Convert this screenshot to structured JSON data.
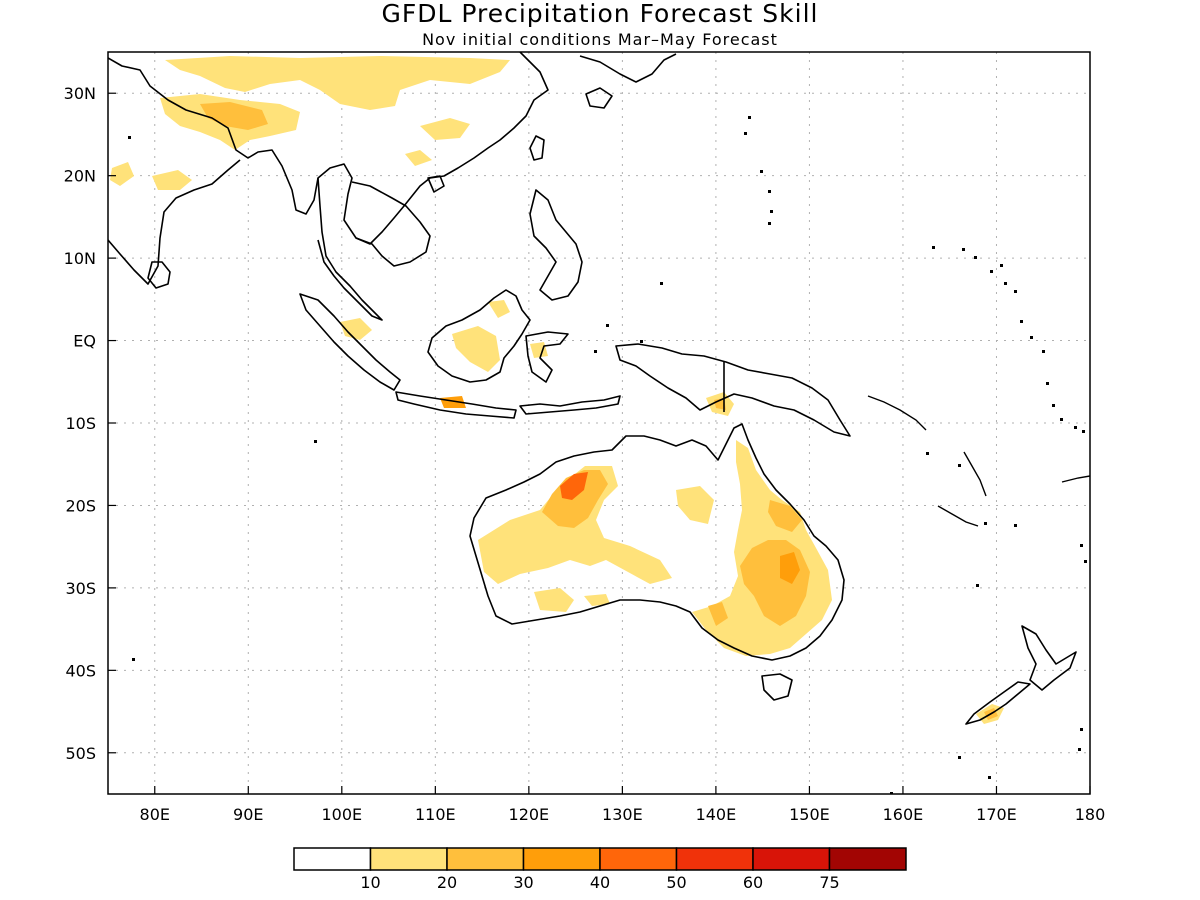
{
  "map": {
    "title": "GFDL Precipitation Forecast Skill",
    "subtitle": "Nov initial conditions  Mar–May Forecast",
    "lon_ticks": [
      "80E",
      "90E",
      "100E",
      "110E",
      "120E",
      "130E",
      "140E",
      "150E",
      "160E",
      "170E",
      "180"
    ],
    "lat_ticks": [
      "30N",
      "20N",
      "10N",
      "EQ",
      "10S",
      "20S",
      "30S",
      "40S",
      "50S"
    ],
    "extent": {
      "lon": [
        75,
        180
      ],
      "lat": [
        -55,
        35
      ]
    }
  },
  "colorbar": {
    "colors": [
      "#ffffff",
      "#ffe27a",
      "#ffbf3c",
      "#ff9e0a",
      "#ff660a",
      "#f0320a",
      "#d81408",
      "#a20503"
    ],
    "labels": [
      "10",
      "20",
      "30",
      "40",
      "50",
      "60",
      "75"
    ]
  },
  "skill_regions": [
    {
      "name": "australia-northwest",
      "level": 2
    },
    {
      "name": "australia-queensland",
      "level": 2
    },
    {
      "name": "australia-interior",
      "level": 1
    },
    {
      "name": "borneo",
      "level": 1
    },
    {
      "name": "china",
      "level": 1
    },
    {
      "name": "new-zealand-south",
      "level": 2
    }
  ]
}
